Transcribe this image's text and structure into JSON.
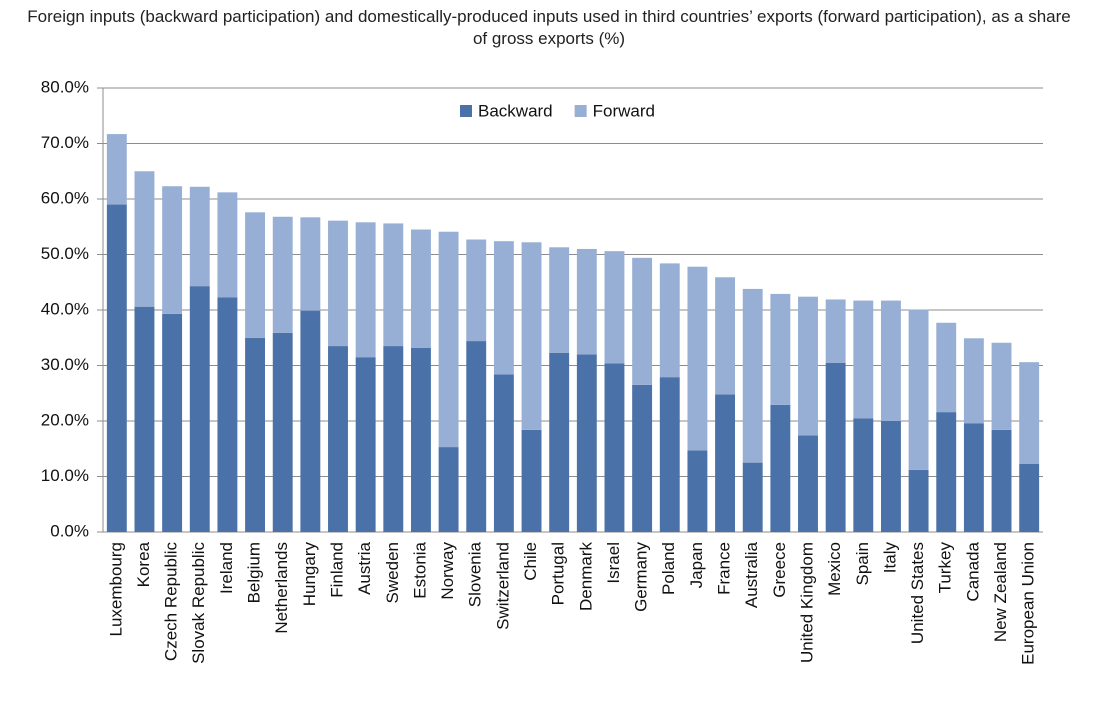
{
  "chart_data": {
    "type": "stacked-bar",
    "title": "Foreign inputs (backward participation) and domestically-produced inputs used in third countries’ exports (forward participation), as a share of gross exports (%)",
    "categories": [
      "Luxembourg",
      "Korea",
      "Czech Republic",
      "Slovak Republic",
      "Ireland",
      "Belgium",
      "Netherlands",
      "Hungary",
      "Finland",
      "Austria",
      "Sweden",
      "Estonia",
      "Norway",
      "Slovenia",
      "Switzerland",
      "Chile",
      "Portugal",
      "Denmark",
      "Israel",
      "Germany",
      "Poland",
      "Japan",
      "France",
      "Australia",
      "Greece",
      "United Kingdom",
      "Mexico",
      "Spain",
      "Italy",
      "United States",
      "Turkey",
      "Canada",
      "New Zealand",
      "European Union"
    ],
    "series": [
      {
        "name": "Backward",
        "color": "#4a72a8",
        "values": [
          59.0,
          40.6,
          39.3,
          44.3,
          42.3,
          35.0,
          35.9,
          39.9,
          33.5,
          31.5,
          33.5,
          33.2,
          15.3,
          34.4,
          28.4,
          18.4,
          32.3,
          32.0,
          30.4,
          26.5,
          27.9,
          14.7,
          24.8,
          12.5,
          22.9,
          17.4,
          30.5,
          20.5,
          20.0,
          11.2,
          21.6,
          19.6,
          18.4,
          12.3
        ]
      },
      {
        "name": "Forward",
        "color": "#98afd5",
        "values": [
          12.7,
          24.4,
          23.0,
          17.9,
          18.9,
          22.6,
          20.9,
          16.8,
          22.6,
          24.3,
          22.1,
          21.3,
          38.8,
          18.3,
          24.0,
          33.8,
          19.0,
          19.0,
          20.2,
          22.9,
          20.5,
          33.1,
          21.1,
          31.3,
          20.0,
          25.0,
          11.4,
          21.2,
          21.7,
          28.9,
          16.1,
          15.3,
          15.7,
          18.3
        ]
      }
    ],
    "ylim": [
      0,
      80
    ],
    "yticks": [
      {
        "value": 0,
        "label": "0.0%"
      },
      {
        "value": 10,
        "label": "10.0%"
      },
      {
        "value": 20,
        "label": "20.0%"
      },
      {
        "value": 30,
        "label": "30.0%"
      },
      {
        "value": 40,
        "label": "40.0%"
      },
      {
        "value": 50,
        "label": "50.0%"
      },
      {
        "value": 60,
        "label": "60.0%"
      },
      {
        "value": 70,
        "label": "70.0%"
      },
      {
        "value": 80,
        "label": "80.0%"
      }
    ],
    "grid": true,
    "legend": "top"
  }
}
